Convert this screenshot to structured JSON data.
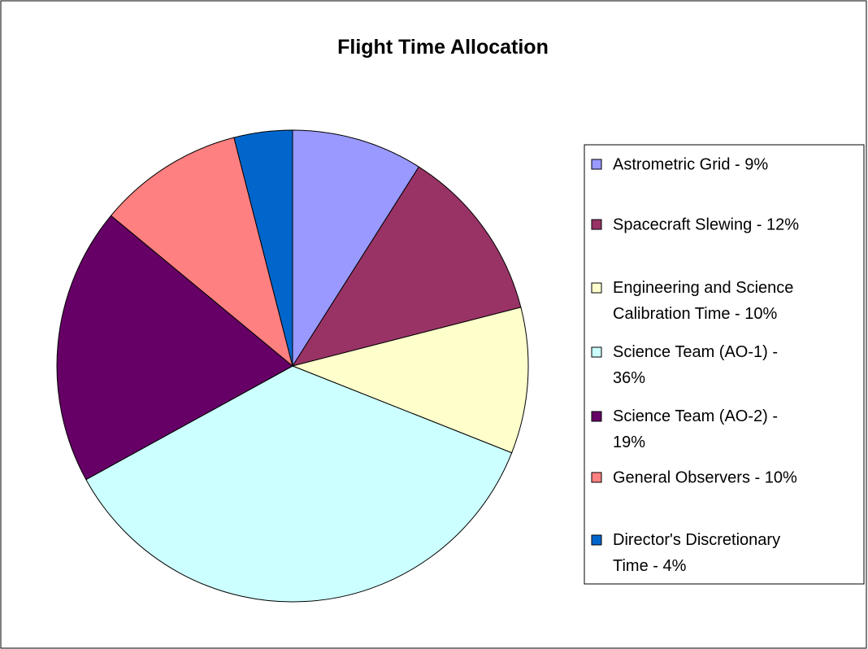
{
  "chart_data": {
    "type": "pie",
    "title": "Flight Time Allocation",
    "categories": [
      "Astrometric Grid - 9%",
      "Spacecraft Slewing - 12%",
      "Engineering and Science Calibration Time - 10%",
      "Science Team (AO-1) - 36%",
      "Science Team (AO-2) - 19%",
      "General Observers - 10%",
      "Director's Discretionary Time - 4%"
    ],
    "values": [
      9,
      12,
      10,
      36,
      19,
      10,
      4
    ],
    "colors": [
      "#9999ff",
      "#993366",
      "#ffffcc",
      "#ccffff",
      "#660066",
      "#ff8080",
      "#0066cc"
    ],
    "legend": "right"
  }
}
